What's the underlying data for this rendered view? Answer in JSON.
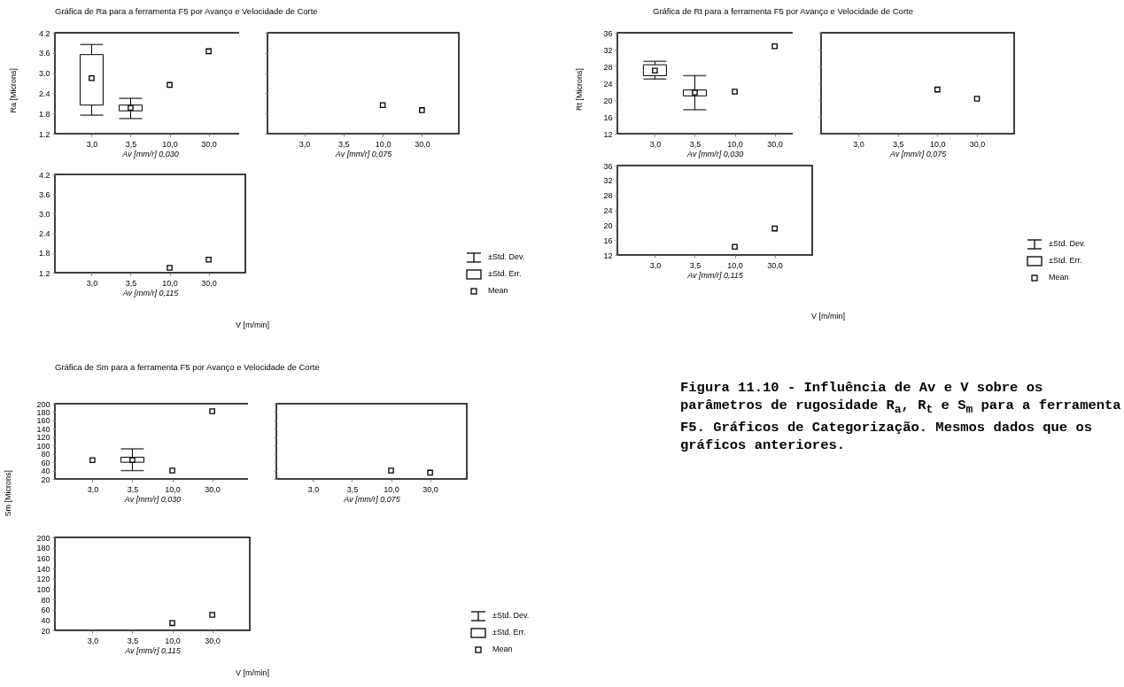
{
  "chart_data": [
    {
      "type": "box",
      "title": "Gráfica de Ra para a ferramenta F5 por Avanço e Velocidade de Corte",
      "ylabel": "Ra [Microns]",
      "xlabel": "Av [mm/r] 0,030",
      "categories": [
        "3,0",
        "3,5",
        "10,0",
        "30,0"
      ],
      "ylim": [
        1.2,
        4.2
      ],
      "yticks": [
        1.2,
        1.8,
        2.4,
        {
          "value": 3,
          "label": "3.0"
        },
        3.6,
        4.2
      ],
      "marker": "square",
      "boxes": [
        {
          "low": 1.75,
          "q1": 2.05,
          "median": 2.85,
          "q3": 3.55,
          "high": 3.85
        },
        {
          "low": 1.65,
          "q1": 1.88,
          "median": 1.97,
          "q3": 2.05,
          "high": 2.25
        },
        null,
        null
      ],
      "series": [
        {
          "type": "scatter",
          "values": [
            null,
            null,
            2.65,
            3.65
          ]
        }
      ]
    },
    {
      "type": "scatter",
      "xlabel": "Av [mm/r] 0,075",
      "categories": [
        "3,0",
        "3,5",
        "10,0",
        "30,0"
      ],
      "ylim": [
        1.2,
        4.2
      ],
      "yticks": [
        1.2,
        1.8,
        2.4,
        3,
        3.6,
        4.2
      ],
      "tick_labels": "x",
      "marker": "square",
      "values": [
        null,
        null,
        2.05,
        1.9
      ]
    },
    {
      "type": "scatter",
      "xlabel": "Av [mm/r] 0,115",
      "categories": [
        "3,0",
        "3,5",
        "10,0",
        "30,0"
      ],
      "ylim": [
        1.2,
        4.2
      ],
      "yticks": [
        1.2,
        1.8,
        2.4,
        {
          "value": 3,
          "label": "3.0"
        },
        3.6,
        4.2
      ],
      "marker": "square",
      "annotations": [
        "V [m/min]",
        "±Std. Dev.",
        "±Std. Err.",
        "Mean"
      ],
      "values": [
        null,
        null,
        1.35,
        1.6
      ]
    },
    {
      "type": "box",
      "title": "Gráfica de Rt para a ferramenta F5 por Avanço e Velocidade de Corte",
      "ylabel": "Rt [Microns]",
      "xlabel": "Av [mm/r] 0,030",
      "categories": [
        "3,0",
        "3,5",
        "10,0",
        "30,0"
      ],
      "ylim": [
        12,
        36
      ],
      "yticks": [
        12,
        16,
        20,
        24,
        28,
        32,
        36
      ],
      "marker": "square",
      "boxes": [
        {
          "low": 25,
          "q1": 25.8,
          "median": 27,
          "q3": 28.4,
          "high": 29.2
        },
        {
          "low": 17.7,
          "q1": 21,
          "median": 21.8,
          "q3": 22.4,
          "high": 25.8
        },
        null,
        null
      ],
      "series": [
        {
          "type": "scatter",
          "values": [
            null,
            null,
            22,
            32.8
          ]
        }
      ]
    },
    {
      "type": "scatter",
      "xlabel": "Av [mm/r] 0,075",
      "categories": [
        "3,0",
        "3,5",
        "10,0",
        "30,0"
      ],
      "ylim": [
        12,
        36
      ],
      "yticks": [
        12,
        16,
        20,
        24,
        28,
        32,
        36
      ],
      "tick_labels": "x",
      "marker": "square",
      "values": [
        null,
        null,
        22.5,
        20.3
      ]
    },
    {
      "type": "scatter",
      "xlabel": "Av [mm/r] 0,115",
      "categories": [
        "3,0",
        "3,5",
        "10,0",
        "30,0"
      ],
      "ylim": [
        12,
        36
      ],
      "yticks": [
        12,
        16,
        20,
        24,
        28,
        32,
        36
      ],
      "marker": "square",
      "annotations": [
        "V [m/min]",
        "±Std. Dev.",
        "±Std. Err.",
        "Mean"
      ],
      "values": [
        null,
        null,
        14.2,
        19.1
      ]
    },
    {
      "type": "box",
      "title": "Gráfica de Sm para a ferramenta F5 por Avanço e Velocidade de Corte",
      "ylabel": "Sm [Microns]",
      "xlabel": "Av [mm/r] 0,030",
      "categories": [
        "3,0",
        "3,5",
        "10,0",
        "30,0"
      ],
      "ylim": [
        20,
        200
      ],
      "yticks": [
        20,
        40,
        60,
        80,
        100,
        120,
        140,
        160,
        180,
        200
      ],
      "marker": "square",
      "boxes": [
        null,
        {
          "low": 40,
          "q1": 60,
          "median": 65,
          "q3": 72,
          "high": 92
        },
        null,
        null
      ],
      "series": [
        {
          "type": "scatter",
          "values": [
            65,
            null,
            40,
            182
          ]
        }
      ]
    },
    {
      "type": "scatter",
      "xlabel": "Av [mm/r] 0,075",
      "categories": [
        "3,0",
        "3,5",
        "10,0",
        "30,0"
      ],
      "ylim": [
        20,
        200
      ],
      "yticks": [
        20,
        40,
        60,
        80,
        100,
        120,
        140,
        160,
        180,
        200
      ],
      "tick_labels": "x",
      "marker": "square",
      "values": [
        null,
        null,
        40,
        35
      ]
    },
    {
      "type": "scatter",
      "xlabel": "Av [mm/r] 0,115",
      "categories": [
        "3,0",
        "3,5",
        "10,0",
        "30,0"
      ],
      "ylim": [
        20,
        200
      ],
      "yticks": [
        20,
        40,
        60,
        80,
        100,
        120,
        140,
        160,
        180,
        200
      ],
      "marker": "square",
      "annotations": [
        "V [m/min]",
        "±Std. Dev.",
        "±Std. Err.",
        "Mean"
      ],
      "values": [
        null,
        null,
        34,
        50
      ]
    },
    {
      "type": "other",
      "title": "Figura 11.10 - Influência de Av e V sobre os parâmetros de rugosidade R$_{a}$, R$_{t}$ e S$_{m}$ para a ferramenta F5. Gráficos de Categorização. Mesmos dados que os gráficos anteriores."
    }
  ]
}
